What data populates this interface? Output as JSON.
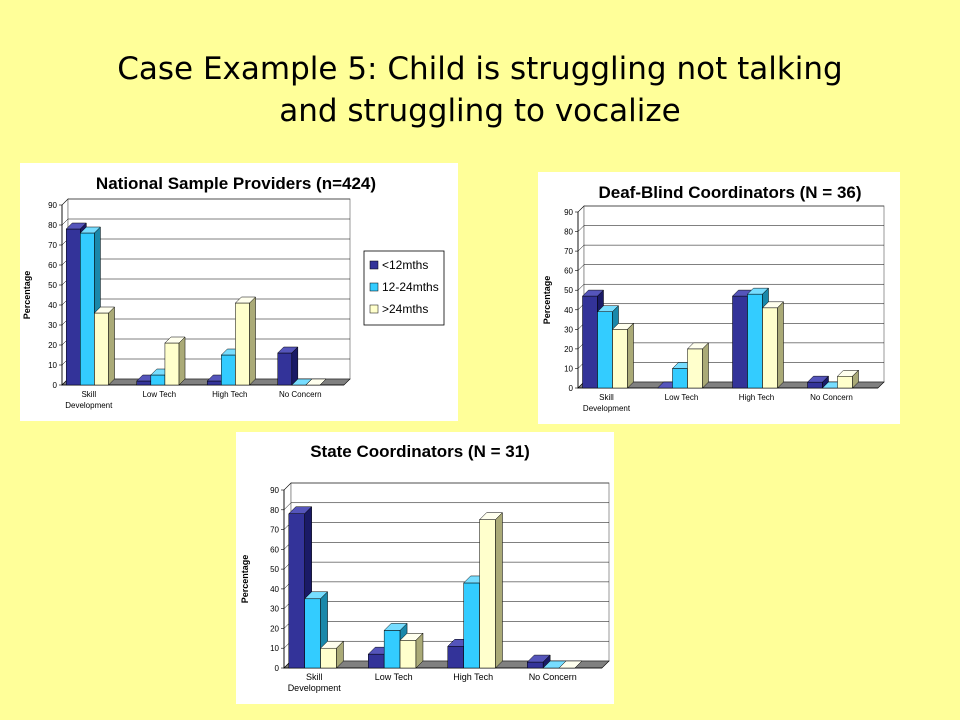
{
  "slide": {
    "title_line1": "Case Example 5: Child is struggling not talking",
    "title_line2": "and struggling to vocalize"
  },
  "legend": {
    "items": [
      "<12mths",
      "12-24mths",
      ">24mths"
    ]
  },
  "colors": {
    "series": [
      "#333399",
      "#33CCFF",
      "#FFFFCC"
    ],
    "series_side": [
      "#1A1A66",
      "#1A88AA",
      "#AAAA77"
    ],
    "series_top": [
      "#5555BB",
      "#77DDFF",
      "#FFFFEE"
    ],
    "wall": "#C0C0C0",
    "floor": "#808080"
  },
  "chart_data": [
    {
      "type": "bar",
      "title": "National Sample Providers (n=424)",
      "ylabel": "Percentage",
      "categories": [
        "Skill Development",
        "Low Tech",
        "High Tech",
        "No Concern"
      ],
      "category_lines": [
        [
          "Skill",
          "Development"
        ],
        [
          "Low Tech"
        ],
        [
          "High Tech"
        ],
        [
          "No Concern"
        ]
      ],
      "ylim": [
        0,
        90
      ],
      "yticks": [
        0,
        10,
        20,
        30,
        40,
        50,
        60,
        70,
        80,
        90
      ],
      "series": [
        {
          "name": "<12mths",
          "values": [
            78,
            2,
            2,
            16
          ]
        },
        {
          "name": "12-24mths",
          "values": [
            76,
            5,
            15,
            0
          ]
        },
        {
          "name": ">24mths",
          "values": [
            36,
            21,
            41,
            0
          ]
        }
      ],
      "legend": "right",
      "grid": true
    },
    {
      "type": "bar",
      "title": "Deaf-Blind Coordinators (N = 36)",
      "ylabel": "Percentage",
      "categories": [
        "Skill Development",
        "Low Tech",
        "High Tech",
        "No Concern"
      ],
      "category_lines": [
        [
          "Skill",
          "Development"
        ],
        [
          "Low Tech"
        ],
        [
          "High Tech"
        ],
        [
          "No Concern"
        ]
      ],
      "ylim": [
        0,
        90
      ],
      "yticks": [
        0,
        10,
        20,
        30,
        40,
        50,
        60,
        70,
        80,
        90
      ],
      "series": [
        {
          "name": "<12mths",
          "values": [
            47,
            0,
            47,
            3
          ]
        },
        {
          "name": "12-24mths",
          "values": [
            39,
            10,
            48,
            0
          ]
        },
        {
          "name": ">24mths",
          "values": [
            30,
            20,
            41,
            6
          ]
        }
      ],
      "legend": "none",
      "grid": true
    },
    {
      "type": "bar",
      "title": "State Coordinators (N = 31)",
      "ylabel": "Percentage",
      "categories": [
        "Skill Development",
        "Low Tech",
        "High Tech",
        "No Concern"
      ],
      "category_lines": [
        [
          "Skill",
          "Development"
        ],
        [
          "Low Tech"
        ],
        [
          "High Tech"
        ],
        [
          "No Concern"
        ]
      ],
      "ylim": [
        0,
        90
      ],
      "yticks": [
        0,
        10,
        20,
        30,
        40,
        50,
        60,
        70,
        80,
        90
      ],
      "series": [
        {
          "name": "<12mths",
          "values": [
            78,
            7,
            11,
            3
          ]
        },
        {
          "name": "12-24mths",
          "values": [
            35,
            19,
            43,
            0
          ]
        },
        {
          "name": ">24mths",
          "values": [
            10,
            14,
            75,
            0
          ]
        }
      ],
      "legend": "none",
      "grid": true
    }
  ]
}
